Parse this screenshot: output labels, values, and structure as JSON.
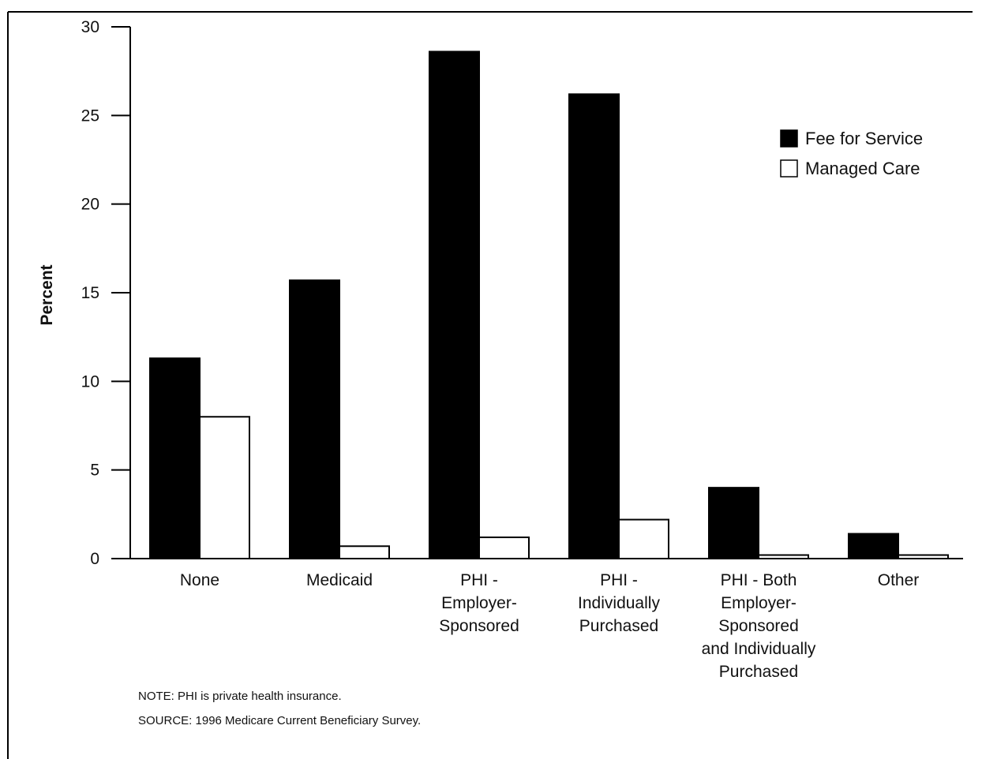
{
  "chart_data": {
    "type": "bar",
    "title": "",
    "xlabel": "",
    "ylabel": "Percent",
    "ylim": [
      0,
      30
    ],
    "yticks": [
      "0",
      "5",
      "10",
      "15",
      "20",
      "25",
      "30"
    ],
    "categories": [
      [
        "None"
      ],
      [
        "Medicaid"
      ],
      [
        "PHI -",
        "Employer-",
        "Sponsored"
      ],
      [
        "PHI -",
        "Individually",
        "Purchased"
      ],
      [
        "PHI - Both",
        "Employer-",
        "Sponsored",
        "and Individually",
        "Purchased"
      ],
      [
        "Other"
      ]
    ],
    "series": [
      {
        "name": "Fee for Service",
        "color": "#000000",
        "values": [
          11.3,
          15.7,
          28.6,
          26.2,
          4.0,
          1.4
        ]
      },
      {
        "name": "Managed Care",
        "color": "#ffffff",
        "values": [
          8.0,
          0.7,
          1.2,
          2.2,
          0.2,
          0.2
        ]
      }
    ],
    "legend_position": "top-right",
    "grid": false
  },
  "notes": {
    "note": "NOTE: PHI is private health insurance.",
    "source": "SOURCE: 1996 Medicare Current Beneficiary Survey."
  }
}
